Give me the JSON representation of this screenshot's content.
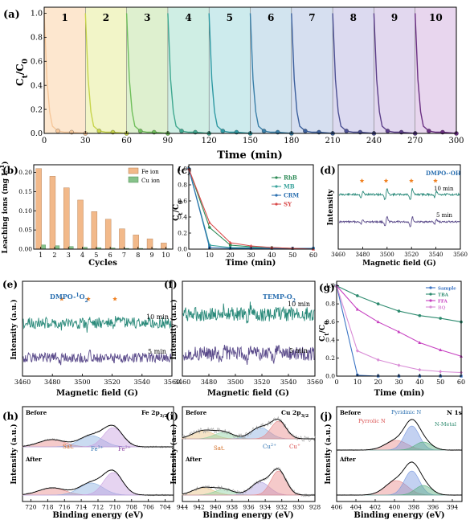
{
  "panel_labels": [
    "(a)",
    "(b)",
    "(c)",
    "(d)",
    "(e)",
    "(f)",
    "(g)",
    "(h)",
    "(i)",
    "(j)"
  ],
  "colors": {
    "rhb": "#2e8b57",
    "mb": "#3aa39c",
    "crm": "#2a6fb0",
    "sy": "#d94a4a",
    "fe_ion": "#f2b98a",
    "cu_ion": "#86c28a",
    "epr_green": "#2a8a7a",
    "epr_purple": "#5a4a8a",
    "scav_sample": "#3b74c4",
    "scav_tba": "#2c8a6e",
    "scav_ffa": "#c63fc0",
    "scav_bq": "#d98cd6"
  },
  "chart_data": [
    {
      "id": "a",
      "type": "line",
      "xlabel": "Time (min)",
      "ylabel": "Ct/C0",
      "ylabel_main": "C",
      "ylabel_sub1": "t",
      "ylabel_sep": "/C",
      "ylabel_sub2": "0",
      "x_ticks": [
        "0",
        "30",
        "60",
        "90",
        "120",
        "150",
        "180",
        "210",
        "240",
        "270",
        "300"
      ],
      "y_ticks": [
        "0.0",
        "0.2",
        "0.4",
        "0.6",
        "0.8",
        "1.0"
      ],
      "xlim": [
        0,
        300
      ],
      "ylim": [
        0,
        1.05
      ],
      "cycles": [
        "1",
        "2",
        "3",
        "4",
        "5",
        "6",
        "7",
        "8",
        "9",
        "10"
      ],
      "cycle_colors": [
        "#f6c79a",
        "#c7d44a",
        "#6fbf5a",
        "#3fa88f",
        "#2f9aa3",
        "#3a7fa8",
        "#3b5f9c",
        "#4b4f92",
        "#5a3d88",
        "#6a2f82"
      ],
      "cycle_bg": [
        "#fde7cf",
        "#f2f5c8",
        "#def0cf",
        "#cfeee4",
        "#cdebed",
        "#d2e4ef",
        "#d6dff0",
        "#dcdaf0",
        "#e2d8ef",
        "#e8d6ee"
      ],
      "per_cycle_x": [
        0,
        2,
        4,
        6,
        10,
        15,
        20,
        25,
        30
      ],
      "per_cycle_y": [
        1.0,
        0.45,
        0.18,
        0.06,
        0.02,
        0.01,
        0.01,
        0.005,
        0.0
      ]
    },
    {
      "id": "b",
      "type": "bar",
      "xlabel": "Cycles",
      "ylabel": "Leaching ions (mg L-1)",
      "ylabel_main": "Leaching ions (mg L",
      "ylabel_sup": "-1",
      "ylabel_end": ")",
      "categories": [
        "1",
        "2",
        "3",
        "4",
        "5",
        "6",
        "7",
        "8",
        "9",
        "10"
      ],
      "y_ticks": [
        "0.00",
        "0.05",
        "0.10",
        "0.15",
        "0.20"
      ],
      "ylim": [
        0,
        0.22
      ],
      "series": [
        {
          "name": "Fe ion",
          "values": [
            0.21,
            0.19,
            0.16,
            0.128,
            0.098,
            0.078,
            0.053,
            0.037,
            0.027,
            0.016
          ]
        },
        {
          "name": "Cu ion",
          "values": [
            0.011,
            0.009,
            0.007,
            0.005,
            0.004,
            0.003,
            0.002,
            0.002,
            0.001,
            0.001
          ]
        }
      ],
      "legend": "top-right"
    },
    {
      "id": "c",
      "type": "line",
      "xlabel": "Time (min)",
      "ylabel": "Ct/C0",
      "ylabel_main": "C",
      "ylabel_sub1": "t",
      "ylabel_sep": "/C",
      "ylabel_sub2": "0",
      "x": [
        0,
        10,
        20,
        30,
        40,
        50,
        60
      ],
      "x_ticks": [
        "0",
        "10",
        "20",
        "30",
        "40",
        "50",
        "60"
      ],
      "y_ticks": [
        "0.0",
        "0.2",
        "0.4",
        "0.6",
        "0.8",
        "1.0"
      ],
      "xlim": [
        0,
        60
      ],
      "ylim": [
        0,
        1.05
      ],
      "series": [
        {
          "name": "RhB",
          "values": [
            1.0,
            0.27,
            0.05,
            0.03,
            0.02,
            0.01,
            0.01
          ]
        },
        {
          "name": "MB",
          "values": [
            1.0,
            0.05,
            0.02,
            0.02,
            0.01,
            0.01,
            0.01
          ]
        },
        {
          "name": "CRM",
          "values": [
            1.0,
            0.02,
            0.01,
            0.01,
            0.01,
            0.01,
            0.01
          ]
        },
        {
          "name": "SY",
          "values": [
            1.0,
            0.33,
            0.08,
            0.04,
            0.02,
            0.01,
            0.0
          ]
        }
      ],
      "legend": "top-right"
    },
    {
      "id": "d",
      "type": "line",
      "xlabel": "Magnetic field (G)",
      "ylabel": "Intensity",
      "x_ticks": [
        "3460",
        "3480",
        "3500",
        "3520",
        "3540",
        "3560"
      ],
      "xlim": [
        3460,
        3560
      ],
      "title": "DMPO-·OH",
      "labels": [
        "10 min",
        "5 min"
      ]
    },
    {
      "id": "e",
      "type": "line",
      "xlabel": "Magnetic field (G)",
      "ylabel": "Intensity (a.u.)",
      "x_ticks": [
        "3460",
        "3480",
        "3500",
        "3520",
        "3540",
        "3560"
      ],
      "xlim": [
        3460,
        3560
      ],
      "title": "DMPO-1O2",
      "title_main": "DMPO-",
      "title_sup": "1",
      "title_end": "O",
      "title_sub": "2",
      "labels": [
        "10 min",
        "5 min"
      ]
    },
    {
      "id": "f",
      "type": "line",
      "xlabel": "Magnetic field (G)",
      "ylabel": "Intensity (a.u.)",
      "x_ticks": [
        "3460",
        "3480",
        "3500",
        "3520",
        "3540",
        "3560"
      ],
      "xlim": [
        3460,
        3560
      ],
      "title": "TEMP-O2",
      "title_main": "TEMP-O",
      "title_sub": "2",
      "labels": [
        "10 min",
        "5 min"
      ]
    },
    {
      "id": "g",
      "type": "line",
      "xlabel": "Time (min)",
      "ylabel": "Ct/C0",
      "ylabel_main": "C",
      "ylabel_sub1": "t",
      "ylabel_sep": "/C",
      "ylabel_sub2": "0",
      "x": [
        0,
        10,
        20,
        30,
        40,
        50,
        60
      ],
      "x_ticks": [
        "0",
        "10",
        "20",
        "30",
        "40",
        "50",
        "60"
      ],
      "y_ticks": [
        "0.0",
        "0.2",
        "0.4",
        "0.6",
        "0.8",
        "1.0"
      ],
      "xlim": [
        0,
        60
      ],
      "ylim": [
        0,
        1.05
      ],
      "series": [
        {
          "name": "Sample",
          "values": [
            1.0,
            0.01,
            0.0,
            0.0,
            0.0,
            0.0,
            0.0
          ]
        },
        {
          "name": "TBA",
          "values": [
            1.0,
            0.89,
            0.8,
            0.72,
            0.67,
            0.64,
            0.6
          ]
        },
        {
          "name": "FFA",
          "values": [
            1.0,
            0.74,
            0.6,
            0.49,
            0.37,
            0.29,
            0.22
          ]
        },
        {
          "name": "BQ",
          "values": [
            1.0,
            0.28,
            0.18,
            0.12,
            0.07,
            0.05,
            0.04
          ]
        }
      ],
      "legend": "top-right"
    },
    {
      "id": "h",
      "type": "line",
      "xlabel": "Binding energy (eV)",
      "ylabel": "Intensity (a.u.)",
      "title": "Fe 2p3/2",
      "title_main": "Fe 2p",
      "title_sub": "3/2",
      "x_ticks": [
        "720",
        "718",
        "716",
        "714",
        "712",
        "710",
        "708",
        "706",
        "704"
      ],
      "xlim": [
        721,
        703
      ],
      "labels": {
        "before": "Before",
        "after": "After",
        "sat": "Sat.",
        "fe3": "Fe3+",
        "fe2": "Fe2+"
      },
      "fe3_main": "Fe",
      "fe3_sup": "3+",
      "fe2_main": "Fe",
      "fe2_sup": "2+"
    },
    {
      "id": "i",
      "type": "line",
      "xlabel": "Binding energy (eV)",
      "ylabel": "Intensity (a.u.)",
      "title": "Cu 2p3/2",
      "title_main": "Cu 2p",
      "title_sub": "3/2",
      "x_ticks": [
        "944",
        "942",
        "940",
        "938",
        "936",
        "934",
        "932",
        "930",
        "928"
      ],
      "xlim": [
        944,
        928
      ],
      "labels": {
        "before": "Before",
        "after": "After",
        "sat": "Sat."
      },
      "cu2_main": "Cu",
      "cu2_sup": "2+",
      "cu1_main": "Cu",
      "cu1_sup": "+"
    },
    {
      "id": "j",
      "type": "line",
      "xlabel": "Binding energy (eV)",
      "ylabel": "Intensity (a.u.)",
      "title": "N 1s",
      "x_ticks": [
        "406",
        "404",
        "402",
        "400",
        "398",
        "396",
        "394"
      ],
      "xlim": [
        406,
        393
      ],
      "labels": {
        "before": "Before",
        "after": "After",
        "pyrrolic": "Pyrrolic N",
        "pyridinic": "Pyridinic N",
        "nmetal": "N-Metal"
      }
    }
  ]
}
